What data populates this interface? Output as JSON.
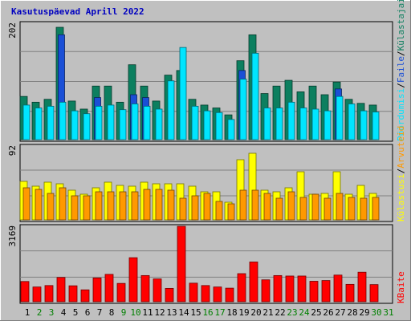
{
  "title": "Kasutuspäevad Aprill 2022",
  "colors": {
    "background": "#c0c0c0",
    "title": "#0000c0",
    "day_label": "#000000",
    "weekend_label": "#008000",
    "visits": "#0c7f5f",
    "files": "#1a4fd6",
    "pages": "#00e5ff",
    "hits": "#ffff00",
    "unique": "#ff9900",
    "kbytes": "#ff0000"
  },
  "legend": {
    "top": [
      {
        "key": "pages",
        "text": "Pöördumisi"
      },
      {
        "key": "sep",
        "text": "/"
      },
      {
        "key": "files",
        "text": "Faile"
      },
      {
        "key": "sep",
        "text": "/"
      },
      {
        "key": "visits",
        "text": "Külastajaid"
      }
    ],
    "middle": [
      {
        "key": "hits",
        "text": "Külastusi"
      },
      {
        "key": "sep",
        "text": "/"
      },
      {
        "key": "unique",
        "text": "Arvuteid"
      }
    ],
    "bottom": [
      {
        "key": "kbytes",
        "text": "KBaite"
      }
    ]
  },
  "chart_data": {
    "type": "bar",
    "categories": [
      "1",
      "2",
      "3",
      "4",
      "5",
      "6",
      "7",
      "8",
      "9",
      "10",
      "11",
      "12",
      "13",
      "14",
      "15",
      "16",
      "17",
      "18",
      "19",
      "20",
      "21",
      "22",
      "23",
      "24",
      "25",
      "26",
      "27",
      "28",
      "29",
      "30",
      "31"
    ],
    "weekend_days": [
      "2",
      "3",
      "9",
      "10",
      "16",
      "17",
      "23",
      "24",
      "30",
      "31"
    ],
    "panels": [
      {
        "name": "top",
        "ymax_label": "202",
        "ymax": 202,
        "series": [
          {
            "key": "visits",
            "values": [
              75,
              65,
              70,
              195,
              67,
              53,
              93,
              93,
              65,
              130,
              93,
              67,
              112,
              120,
              70,
              60,
              55,
              43,
              137,
              182,
              80,
              93,
              103,
              83,
              93,
              78,
              100,
              70,
              63,
              60
            ]
          },
          {
            "key": "files",
            "values": [
              0,
              0,
              0,
              182,
              0,
              0,
              73,
              0,
              0,
              78,
              73,
              0,
              0,
              0,
              0,
              0,
              0,
              0,
              120,
              0,
              0,
              0,
              0,
              0,
              0,
              0,
              88,
              0,
              0,
              0
            ]
          },
          {
            "key": "pages",
            "values": [
              60,
              55,
              58,
              65,
              50,
              45,
              58,
              60,
              52,
              62,
              58,
              53,
              102,
              160,
              58,
              50,
              47,
              35,
              105,
              150,
              55,
              55,
              65,
              55,
              53,
              50,
              75,
              62,
              50,
              48
            ]
          }
        ]
      },
      {
        "name": "middle",
        "ymax_label": "92",
        "ymax": 92,
        "series": [
          {
            "key": "hits",
            "values": [
              48,
              42,
              47,
              45,
              37,
              32,
              40,
              47,
              43,
              42,
              47,
              45,
              45,
              45,
              42,
              35,
              35,
              22,
              75,
              83,
              37,
              35,
              40,
              60,
              32,
              33,
              60,
              32,
              43,
              33
            ]
          },
          {
            "key": "unique",
            "values": [
              40,
              38,
              33,
              40,
              30,
              30,
              35,
              35,
              35,
              35,
              38,
              38,
              37,
              27,
              30,
              33,
              23,
              20,
              37,
              37,
              33,
              27,
              35,
              28,
              32,
              27,
              33,
              28,
              27,
              28
            ]
          }
        ]
      },
      {
        "name": "bottom",
        "ymax_label": "3169",
        "ymax": 3169,
        "series": [
          {
            "key": "kbytes",
            "values": [
              850,
              620,
              680,
              1020,
              670,
              500,
              1000,
              1150,
              770,
              1850,
              1100,
              960,
              560,
              3169,
              780,
              680,
              620,
              570,
              1180,
              1670,
              920,
              1100,
              1080,
              1080,
              860,
              890,
              1120,
              730,
              1240,
              720
            ]
          }
        ]
      }
    ]
  }
}
